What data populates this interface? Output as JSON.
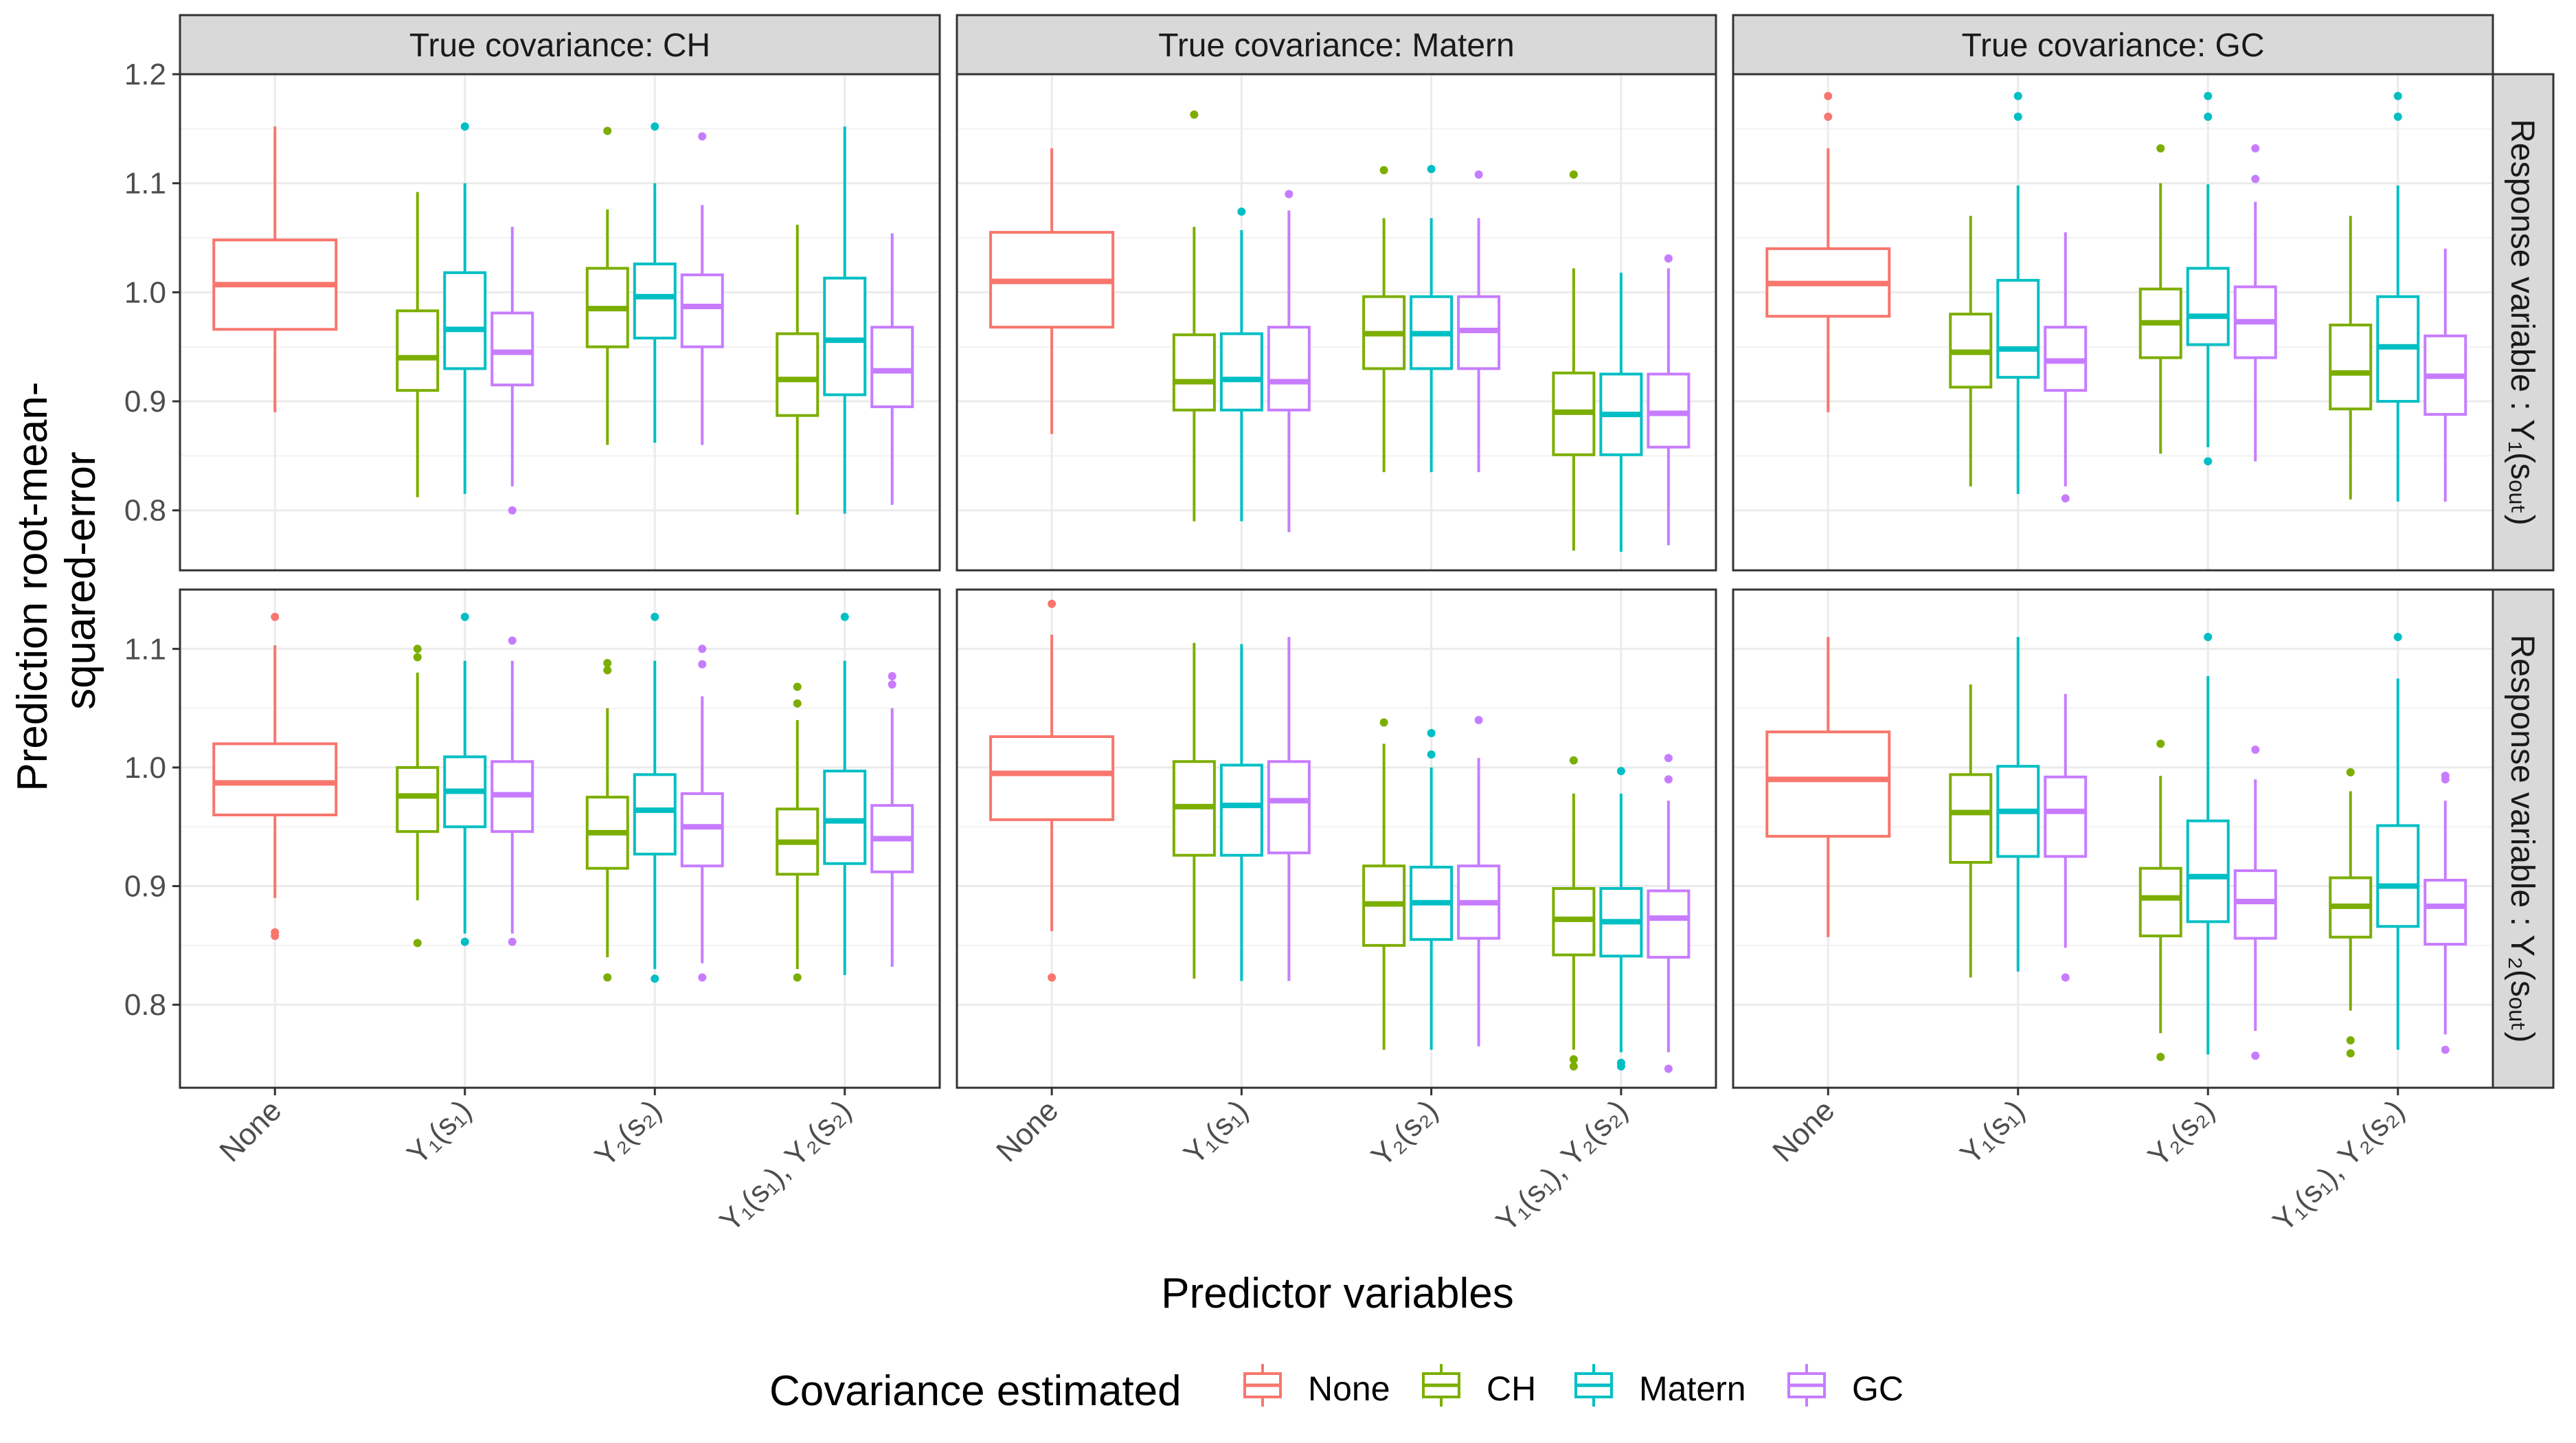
{
  "chart_data": {
    "type": "boxplot",
    "xlabel": "Predictor variables",
    "ylabel_lines": [
      "Prediction root-mean-",
      "squared-error"
    ],
    "columns": [
      "True covariance: CH",
      "True covariance: Matern",
      "True covariance: GC"
    ],
    "rows": [
      {
        "label": "Response variable : Y₁(sₒᵤₜ)",
        "ylim": [
          0.745,
          1.2
        ],
        "ticks": [
          0.8,
          0.9,
          1.0,
          1.1,
          1.2
        ],
        "tick_labels": [
          "0.8",
          "0.9",
          "1.0",
          "1.1",
          "1.2"
        ]
      },
      {
        "label": "Response variable : Y₂(sₒᵤₜ)",
        "ylim": [
          0.73,
          1.15
        ],
        "ticks": [
          0.8,
          0.9,
          1.0,
          1.1
        ],
        "tick_labels": [
          "0.8",
          "0.9",
          "1.0",
          "1.1"
        ]
      }
    ],
    "categories": [
      "None",
      "Y₁(s₁)",
      "Y₂(s₂)",
      "Y₁(s₁), Y₂(s₂)"
    ],
    "legend": {
      "title": "Covariance estimated",
      "entries": [
        {
          "name": "None",
          "color": "#F8766D"
        },
        {
          "name": "CH",
          "color": "#7CAE00"
        },
        {
          "name": "Matern",
          "color": "#00BFC4"
        },
        {
          "name": "GC",
          "color": "#C77CFF"
        }
      ]
    },
    "colors": {
      "None": "#F8766D",
      "CH": "#7CAE00",
      "Matern": "#00BFC4",
      "GC": "#C77CFF"
    },
    "boxes": [
      {
        "row": 0,
        "col": 0,
        "cat": 0,
        "est": "None",
        "stats": [
          0.89,
          0.966,
          1.007,
          1.048,
          1.152
        ],
        "out": []
      },
      {
        "row": 0,
        "col": 0,
        "cat": 1,
        "est": "CH",
        "stats": [
          0.812,
          0.91,
          0.94,
          0.983,
          1.092
        ],
        "out": []
      },
      {
        "row": 0,
        "col": 0,
        "cat": 1,
        "est": "Matern",
        "stats": [
          0.815,
          0.93,
          0.966,
          1.018,
          1.1
        ],
        "out": [
          1.152
        ]
      },
      {
        "row": 0,
        "col": 0,
        "cat": 1,
        "est": "GC",
        "stats": [
          0.822,
          0.915,
          0.945,
          0.981,
          1.06
        ],
        "out": [
          0.8
        ]
      },
      {
        "row": 0,
        "col": 0,
        "cat": 2,
        "est": "CH",
        "stats": [
          0.86,
          0.95,
          0.985,
          1.022,
          1.076
        ],
        "out": [
          1.148
        ]
      },
      {
        "row": 0,
        "col": 0,
        "cat": 2,
        "est": "Matern",
        "stats": [
          0.862,
          0.958,
          0.996,
          1.026,
          1.1
        ],
        "out": [
          1.152
        ]
      },
      {
        "row": 0,
        "col": 0,
        "cat": 2,
        "est": "GC",
        "stats": [
          0.86,
          0.95,
          0.987,
          1.016,
          1.08
        ],
        "out": [
          1.143
        ]
      },
      {
        "row": 0,
        "col": 0,
        "cat": 3,
        "est": "CH",
        "stats": [
          0.796,
          0.887,
          0.92,
          0.962,
          1.062
        ],
        "out": []
      },
      {
        "row": 0,
        "col": 0,
        "cat": 3,
        "est": "Matern",
        "stats": [
          0.797,
          0.906,
          0.956,
          1.013,
          1.152
        ],
        "out": []
      },
      {
        "row": 0,
        "col": 0,
        "cat": 3,
        "est": "GC",
        "stats": [
          0.805,
          0.895,
          0.928,
          0.968,
          1.054
        ],
        "out": []
      },
      {
        "row": 0,
        "col": 1,
        "cat": 0,
        "est": "None",
        "stats": [
          0.87,
          0.968,
          1.01,
          1.055,
          1.132
        ],
        "out": []
      },
      {
        "row": 0,
        "col": 1,
        "cat": 1,
        "est": "CH",
        "stats": [
          0.79,
          0.892,
          0.918,
          0.961,
          1.06
        ],
        "out": [
          1.163
        ]
      },
      {
        "row": 0,
        "col": 1,
        "cat": 1,
        "est": "Matern",
        "stats": [
          0.79,
          0.892,
          0.92,
          0.962,
          1.057
        ],
        "out": [
          1.074
        ]
      },
      {
        "row": 0,
        "col": 1,
        "cat": 1,
        "est": "GC",
        "stats": [
          0.78,
          0.892,
          0.918,
          0.968,
          1.075
        ],
        "out": [
          1.09
        ]
      },
      {
        "row": 0,
        "col": 1,
        "cat": 2,
        "est": "CH",
        "stats": [
          0.835,
          0.93,
          0.962,
          0.996,
          1.068
        ],
        "out": [
          1.112
        ]
      },
      {
        "row": 0,
        "col": 1,
        "cat": 2,
        "est": "Matern",
        "stats": [
          0.835,
          0.93,
          0.962,
          0.996,
          1.068
        ],
        "out": [
          1.113
        ]
      },
      {
        "row": 0,
        "col": 1,
        "cat": 2,
        "est": "GC",
        "stats": [
          0.835,
          0.93,
          0.965,
          0.996,
          1.068
        ],
        "out": [
          1.108
        ]
      },
      {
        "row": 0,
        "col": 1,
        "cat": 3,
        "est": "CH",
        "stats": [
          0.763,
          0.851,
          0.89,
          0.926,
          1.022
        ],
        "out": [
          1.108
        ]
      },
      {
        "row": 0,
        "col": 1,
        "cat": 3,
        "est": "Matern",
        "stats": [
          0.762,
          0.851,
          0.888,
          0.925,
          1.018
        ],
        "out": []
      },
      {
        "row": 0,
        "col": 1,
        "cat": 3,
        "est": "GC",
        "stats": [
          0.768,
          0.858,
          0.889,
          0.925,
          1.022
        ],
        "out": [
          1.031
        ]
      },
      {
        "row": 0,
        "col": 2,
        "cat": 0,
        "est": "None",
        "stats": [
          0.89,
          0.978,
          1.008,
          1.04,
          1.132
        ],
        "out": [
          1.161,
          1.18
        ]
      },
      {
        "row": 0,
        "col": 2,
        "cat": 1,
        "est": "CH",
        "stats": [
          0.822,
          0.913,
          0.945,
          0.98,
          1.07
        ],
        "out": []
      },
      {
        "row": 0,
        "col": 2,
        "cat": 1,
        "est": "Matern",
        "stats": [
          0.815,
          0.922,
          0.948,
          1.011,
          1.098
        ],
        "out": [
          1.161,
          1.18
        ]
      },
      {
        "row": 0,
        "col": 2,
        "cat": 1,
        "est": "GC",
        "stats": [
          0.822,
          0.91,
          0.937,
          0.968,
          1.055
        ],
        "out": [
          0.811
        ]
      },
      {
        "row": 0,
        "col": 2,
        "cat": 2,
        "est": "CH",
        "stats": [
          0.852,
          0.94,
          0.972,
          1.003,
          1.1
        ],
        "out": [
          1.132
        ]
      },
      {
        "row": 0,
        "col": 2,
        "cat": 2,
        "est": "Matern",
        "stats": [
          0.858,
          0.952,
          0.978,
          1.022,
          1.099
        ],
        "out": [
          0.845,
          1.161,
          1.18
        ]
      },
      {
        "row": 0,
        "col": 2,
        "cat": 2,
        "est": "GC",
        "stats": [
          0.845,
          0.94,
          0.973,
          1.005,
          1.083
        ],
        "out": [
          1.104,
          1.132
        ]
      },
      {
        "row": 0,
        "col": 2,
        "cat": 3,
        "est": "CH",
        "stats": [
          0.81,
          0.893,
          0.926,
          0.97,
          1.07
        ],
        "out": []
      },
      {
        "row": 0,
        "col": 2,
        "cat": 3,
        "est": "Matern",
        "stats": [
          0.808,
          0.9,
          0.95,
          0.996,
          1.098
        ],
        "out": [
          1.161,
          1.18
        ]
      },
      {
        "row": 0,
        "col": 2,
        "cat": 3,
        "est": "GC",
        "stats": [
          0.808,
          0.888,
          0.923,
          0.96,
          1.04
        ],
        "out": []
      },
      {
        "row": 1,
        "col": 0,
        "cat": 0,
        "est": "None",
        "stats": [
          0.89,
          0.96,
          0.987,
          1.02,
          1.103
        ],
        "out": [
          0.858,
          0.861,
          1.127
        ]
      },
      {
        "row": 1,
        "col": 0,
        "cat": 1,
        "est": "CH",
        "stats": [
          0.888,
          0.946,
          0.976,
          1.0,
          1.08
        ],
        "out": [
          0.852,
          1.093,
          1.1
        ]
      },
      {
        "row": 1,
        "col": 0,
        "cat": 1,
        "est": "Matern",
        "stats": [
          0.86,
          0.95,
          0.98,
          1.009,
          1.09
        ],
        "out": [
          0.853,
          1.127
        ]
      },
      {
        "row": 1,
        "col": 0,
        "cat": 1,
        "est": "GC",
        "stats": [
          0.86,
          0.946,
          0.977,
          1.005,
          1.09
        ],
        "out": [
          0.853,
          1.107
        ]
      },
      {
        "row": 1,
        "col": 0,
        "cat": 2,
        "est": "CH",
        "stats": [
          0.84,
          0.915,
          0.945,
          0.975,
          1.05
        ],
        "out": [
          0.823,
          1.082,
          1.088
        ]
      },
      {
        "row": 1,
        "col": 0,
        "cat": 2,
        "est": "Matern",
        "stats": [
          0.83,
          0.927,
          0.964,
          0.994,
          1.09
        ],
        "out": [
          0.822,
          1.127
        ]
      },
      {
        "row": 1,
        "col": 0,
        "cat": 2,
        "est": "GC",
        "stats": [
          0.835,
          0.917,
          0.95,
          0.978,
          1.06
        ],
        "out": [
          0.823,
          1.087,
          1.1
        ]
      },
      {
        "row": 1,
        "col": 0,
        "cat": 3,
        "est": "CH",
        "stats": [
          0.83,
          0.91,
          0.937,
          0.965,
          1.04
        ],
        "out": [
          0.823,
          1.054,
          1.068
        ]
      },
      {
        "row": 1,
        "col": 0,
        "cat": 3,
        "est": "Matern",
        "stats": [
          0.825,
          0.919,
          0.955,
          0.997,
          1.09
        ],
        "out": [
          1.127
        ]
      },
      {
        "row": 1,
        "col": 0,
        "cat": 3,
        "est": "GC",
        "stats": [
          0.832,
          0.912,
          0.94,
          0.968,
          1.05
        ],
        "out": [
          1.07,
          1.077
        ]
      },
      {
        "row": 1,
        "col": 1,
        "cat": 0,
        "est": "None",
        "stats": [
          0.862,
          0.956,
          0.995,
          1.026,
          1.112
        ],
        "out": [
          0.823,
          1.138
        ]
      },
      {
        "row": 1,
        "col": 1,
        "cat": 1,
        "est": "CH",
        "stats": [
          0.822,
          0.926,
          0.967,
          1.005,
          1.105
        ],
        "out": []
      },
      {
        "row": 1,
        "col": 1,
        "cat": 1,
        "est": "Matern",
        "stats": [
          0.82,
          0.926,
          0.968,
          1.002,
          1.104
        ],
        "out": []
      },
      {
        "row": 1,
        "col": 1,
        "cat": 1,
        "est": "GC",
        "stats": [
          0.82,
          0.928,
          0.972,
          1.005,
          1.11
        ],
        "out": []
      },
      {
        "row": 1,
        "col": 1,
        "cat": 2,
        "est": "CH",
        "stats": [
          0.762,
          0.85,
          0.885,
          0.917,
          1.02
        ],
        "out": [
          1.038
        ]
      },
      {
        "row": 1,
        "col": 1,
        "cat": 2,
        "est": "Matern",
        "stats": [
          0.762,
          0.855,
          0.886,
          0.916,
          1.0
        ],
        "out": [
          1.011,
          1.029
        ]
      },
      {
        "row": 1,
        "col": 1,
        "cat": 2,
        "est": "GC",
        "stats": [
          0.765,
          0.856,
          0.886,
          0.917,
          1.008
        ],
        "out": [
          1.04
        ]
      },
      {
        "row": 1,
        "col": 1,
        "cat": 3,
        "est": "CH",
        "stats": [
          0.762,
          0.842,
          0.872,
          0.898,
          0.978
        ],
        "out": [
          0.748,
          0.754,
          1.006
        ]
      },
      {
        "row": 1,
        "col": 1,
        "cat": 3,
        "est": "Matern",
        "stats": [
          0.76,
          0.841,
          0.87,
          0.898,
          0.978
        ],
        "out": [
          0.748,
          0.751,
          0.997
        ]
      },
      {
        "row": 1,
        "col": 1,
        "cat": 3,
        "est": "GC",
        "stats": [
          0.76,
          0.84,
          0.873,
          0.896,
          0.972
        ],
        "out": [
          0.746,
          0.99,
          1.008
        ]
      },
      {
        "row": 1,
        "col": 2,
        "cat": 0,
        "est": "None",
        "stats": [
          0.857,
          0.942,
          0.99,
          1.03,
          1.11
        ],
        "out": []
      },
      {
        "row": 1,
        "col": 2,
        "cat": 1,
        "est": "CH",
        "stats": [
          0.823,
          0.92,
          0.962,
          0.994,
          1.07
        ],
        "out": []
      },
      {
        "row": 1,
        "col": 2,
        "cat": 1,
        "est": "Matern",
        "stats": [
          0.828,
          0.925,
          0.963,
          1.001,
          1.11
        ],
        "out": []
      },
      {
        "row": 1,
        "col": 2,
        "cat": 1,
        "est": "GC",
        "stats": [
          0.848,
          0.925,
          0.963,
          0.992,
          1.062
        ],
        "out": [
          0.823
        ]
      },
      {
        "row": 1,
        "col": 2,
        "cat": 2,
        "est": "CH",
        "stats": [
          0.776,
          0.858,
          0.89,
          0.915,
          0.993
        ],
        "out": [
          0.756,
          1.02
        ]
      },
      {
        "row": 1,
        "col": 2,
        "cat": 2,
        "est": "Matern",
        "stats": [
          0.758,
          0.87,
          0.908,
          0.955,
          1.077
        ],
        "out": [
          1.11
        ]
      },
      {
        "row": 1,
        "col": 2,
        "cat": 2,
        "est": "GC",
        "stats": [
          0.778,
          0.856,
          0.887,
          0.913,
          0.99
        ],
        "out": [
          0.757,
          1.015
        ]
      },
      {
        "row": 1,
        "col": 2,
        "cat": 3,
        "est": "CH",
        "stats": [
          0.795,
          0.857,
          0.883,
          0.907,
          0.98
        ],
        "out": [
          0.759,
          0.77,
          0.996
        ]
      },
      {
        "row": 1,
        "col": 2,
        "cat": 3,
        "est": "Matern",
        "stats": [
          0.762,
          0.866,
          0.9,
          0.951,
          1.075
        ],
        "out": [
          1.11
        ]
      },
      {
        "row": 1,
        "col": 2,
        "cat": 3,
        "est": "GC",
        "stats": [
          0.775,
          0.851,
          0.883,
          0.905,
          0.972
        ],
        "out": [
          0.762,
          0.99,
          0.993
        ]
      }
    ]
  }
}
